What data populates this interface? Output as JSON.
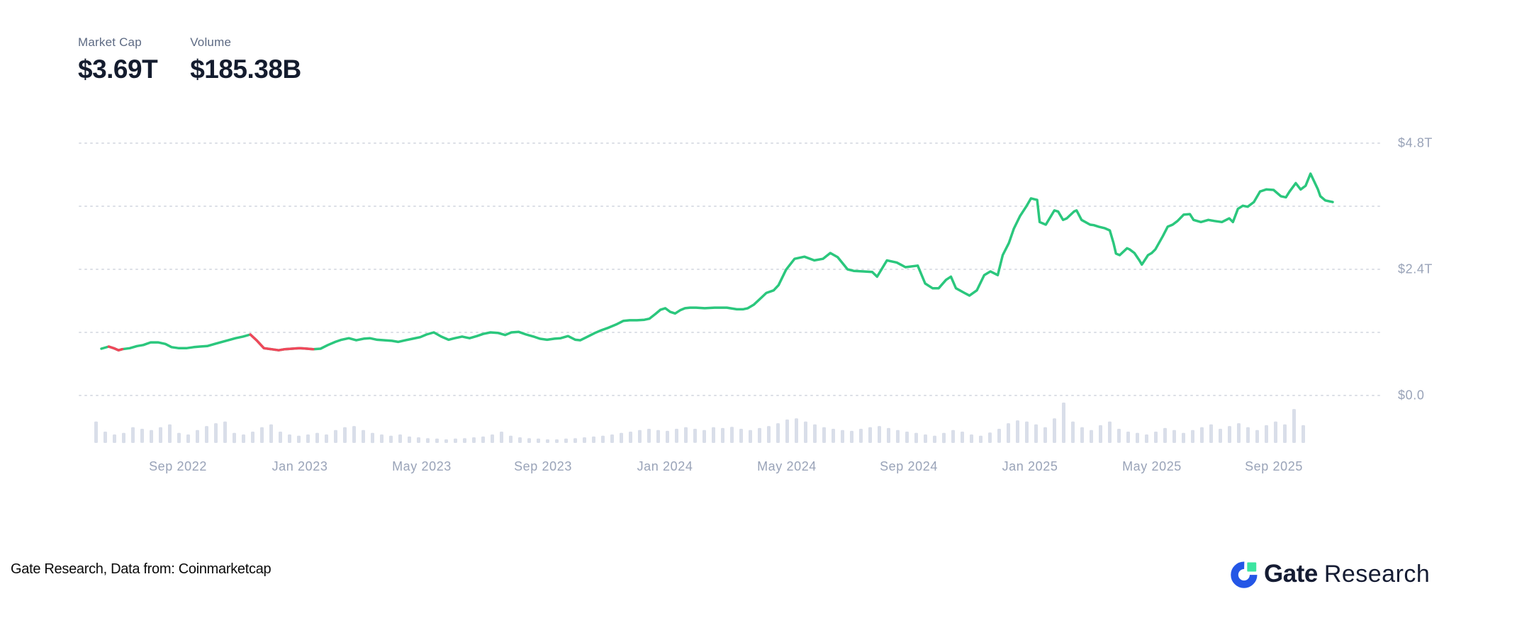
{
  "header": {
    "market_cap_label": "Market Cap",
    "market_cap_value": "$3.69T",
    "volume_label": "Volume",
    "volume_value": "$185.38B"
  },
  "footer": {
    "attribution": "Gate Research, Data from: Coinmarketcap",
    "logo_bold": "Gate",
    "logo_regular": "Research"
  },
  "colors": {
    "line_green": "#2bc77d",
    "line_red": "#f0475a",
    "volume_bar": "#d9dee9",
    "gridline": "#dcdfe6",
    "axis_label": "#99a3b8",
    "logo_blue": "#2456e6",
    "logo_green": "#3ce5a0",
    "logo_navy": "#151c33"
  },
  "chart_data": {
    "type": "line",
    "title": "Total crypto market cap (line) with trading volume (bars)",
    "x_axis": {
      "labels": [
        "Sep 2022",
        "Jan 2023",
        "May 2023",
        "Sep 2023",
        "Jan 2024",
        "May 2024",
        "Sep 2024",
        "Jan 2025",
        "May 2025",
        "Sep 2025"
      ]
    },
    "y_axis": {
      "unit": "USD trillions",
      "labels": [
        {
          "text": "$4.8T",
          "value": 4.8
        },
        {
          "text": "$2.4T",
          "value": 2.4
        },
        {
          "text": "$0.0",
          "value": 0
        }
      ],
      "gridline_values": [
        4.8,
        3.6,
        2.4,
        1.2,
        0
      ],
      "range": [
        0,
        4.8
      ],
      "grid_style": "dotted"
    },
    "series": [
      {
        "name": "Market Cap",
        "unit": "T",
        "style": "line",
        "points": [
          [
            0.0,
            0.89
          ],
          [
            0.006,
            0.93
          ],
          [
            0.01,
            0.9
          ],
          [
            0.014,
            0.86
          ],
          [
            0.017,
            0.88
          ],
          [
            0.023,
            0.9
          ],
          [
            0.029,
            0.94
          ],
          [
            0.034,
            0.96
          ],
          [
            0.04,
            1.01
          ],
          [
            0.046,
            1.01
          ],
          [
            0.052,
            0.98
          ],
          [
            0.057,
            0.92
          ],
          [
            0.063,
            0.9
          ],
          [
            0.069,
            0.9
          ],
          [
            0.075,
            0.92
          ],
          [
            0.08,
            0.93
          ],
          [
            0.086,
            0.94
          ],
          [
            0.092,
            0.98
          ],
          [
            0.098,
            1.02
          ],
          [
            0.103,
            1.05
          ],
          [
            0.109,
            1.09
          ],
          [
            0.115,
            1.12
          ],
          [
            0.121,
            1.16
          ],
          [
            0.126,
            1.05
          ],
          [
            0.132,
            0.9
          ],
          [
            0.138,
            0.88
          ],
          [
            0.144,
            0.86
          ],
          [
            0.149,
            0.88
          ],
          [
            0.155,
            0.89
          ],
          [
            0.161,
            0.9
          ],
          [
            0.167,
            0.89
          ],
          [
            0.172,
            0.88
          ],
          [
            0.178,
            0.89
          ],
          [
            0.184,
            0.96
          ],
          [
            0.19,
            1.02
          ],
          [
            0.195,
            1.06
          ],
          [
            0.201,
            1.09
          ],
          [
            0.207,
            1.05
          ],
          [
            0.213,
            1.08
          ],
          [
            0.218,
            1.09
          ],
          [
            0.224,
            1.06
          ],
          [
            0.23,
            1.05
          ],
          [
            0.236,
            1.04
          ],
          [
            0.241,
            1.02
          ],
          [
            0.247,
            1.05
          ],
          [
            0.253,
            1.08
          ],
          [
            0.259,
            1.11
          ],
          [
            0.264,
            1.16
          ],
          [
            0.27,
            1.2
          ],
          [
            0.276,
            1.12
          ],
          [
            0.282,
            1.06
          ],
          [
            0.287,
            1.09
          ],
          [
            0.293,
            1.12
          ],
          [
            0.299,
            1.09
          ],
          [
            0.305,
            1.13
          ],
          [
            0.31,
            1.17
          ],
          [
            0.316,
            1.2
          ],
          [
            0.322,
            1.19
          ],
          [
            0.328,
            1.15
          ],
          [
            0.333,
            1.2
          ],
          [
            0.339,
            1.21
          ],
          [
            0.345,
            1.16
          ],
          [
            0.351,
            1.12
          ],
          [
            0.356,
            1.08
          ],
          [
            0.362,
            1.06
          ],
          [
            0.368,
            1.08
          ],
          [
            0.373,
            1.09
          ],
          [
            0.379,
            1.13
          ],
          [
            0.385,
            1.06
          ],
          [
            0.389,
            1.05
          ],
          [
            0.395,
            1.12
          ],
          [
            0.401,
            1.19
          ],
          [
            0.406,
            1.24
          ],
          [
            0.412,
            1.29
          ],
          [
            0.418,
            1.35
          ],
          [
            0.424,
            1.42
          ],
          [
            0.429,
            1.43
          ],
          [
            0.435,
            1.43
          ],
          [
            0.441,
            1.44
          ],
          [
            0.445,
            1.46
          ],
          [
            0.45,
            1.55
          ],
          [
            0.454,
            1.63
          ],
          [
            0.458,
            1.66
          ],
          [
            0.462,
            1.59
          ],
          [
            0.466,
            1.56
          ],
          [
            0.47,
            1.62
          ],
          [
            0.474,
            1.66
          ],
          [
            0.478,
            1.67
          ],
          [
            0.483,
            1.67
          ],
          [
            0.49,
            1.66
          ],
          [
            0.498,
            1.67
          ],
          [
            0.508,
            1.67
          ],
          [
            0.516,
            1.64
          ],
          [
            0.521,
            1.64
          ],
          [
            0.525,
            1.66
          ],
          [
            0.53,
            1.73
          ],
          [
            0.536,
            1.86
          ],
          [
            0.54,
            1.95
          ],
          [
            0.546,
            2.0
          ],
          [
            0.55,
            2.1
          ],
          [
            0.556,
            2.39
          ],
          [
            0.563,
            2.6
          ],
          [
            0.571,
            2.64
          ],
          [
            0.579,
            2.57
          ],
          [
            0.586,
            2.6
          ],
          [
            0.592,
            2.71
          ],
          [
            0.598,
            2.63
          ],
          [
            0.606,
            2.4
          ],
          [
            0.611,
            2.37
          ],
          [
            0.619,
            2.36
          ],
          [
            0.626,
            2.35
          ],
          [
            0.63,
            2.26
          ],
          [
            0.638,
            2.57
          ],
          [
            0.646,
            2.53
          ],
          [
            0.653,
            2.44
          ],
          [
            0.663,
            2.47
          ],
          [
            0.669,
            2.13
          ],
          [
            0.675,
            2.04
          ],
          [
            0.68,
            2.04
          ],
          [
            0.686,
            2.2
          ],
          [
            0.69,
            2.26
          ],
          [
            0.694,
            2.04
          ],
          [
            0.701,
            1.95
          ],
          [
            0.705,
            1.9
          ],
          [
            0.711,
            2.0
          ],
          [
            0.717,
            2.29
          ],
          [
            0.722,
            2.36
          ],
          [
            0.728,
            2.29
          ],
          [
            0.732,
            2.67
          ],
          [
            0.737,
            2.9
          ],
          [
            0.741,
            3.17
          ],
          [
            0.746,
            3.41
          ],
          [
            0.751,
            3.59
          ],
          [
            0.755,
            3.75
          ],
          [
            0.76,
            3.72
          ],
          [
            0.762,
            3.3
          ],
          [
            0.767,
            3.25
          ],
          [
            0.774,
            3.52
          ],
          [
            0.777,
            3.5
          ],
          [
            0.781,
            3.34
          ],
          [
            0.784,
            3.37
          ],
          [
            0.79,
            3.5
          ],
          [
            0.792,
            3.52
          ],
          [
            0.796,
            3.34
          ],
          [
            0.803,
            3.25
          ],
          [
            0.806,
            3.24
          ],
          [
            0.81,
            3.21
          ],
          [
            0.815,
            3.18
          ],
          [
            0.819,
            3.14
          ],
          [
            0.822,
            2.9
          ],
          [
            0.824,
            2.7
          ],
          [
            0.827,
            2.67
          ],
          [
            0.833,
            2.8
          ],
          [
            0.835,
            2.78
          ],
          [
            0.839,
            2.71
          ],
          [
            0.843,
            2.57
          ],
          [
            0.845,
            2.49
          ],
          [
            0.85,
            2.67
          ],
          [
            0.853,
            2.71
          ],
          [
            0.856,
            2.78
          ],
          [
            0.862,
            3.03
          ],
          [
            0.866,
            3.21
          ],
          [
            0.87,
            3.25
          ],
          [
            0.874,
            3.32
          ],
          [
            0.879,
            3.44
          ],
          [
            0.884,
            3.45
          ],
          [
            0.887,
            3.34
          ],
          [
            0.893,
            3.3
          ],
          [
            0.899,
            3.34
          ],
          [
            0.904,
            3.32
          ],
          [
            0.91,
            3.3
          ],
          [
            0.916,
            3.37
          ],
          [
            0.919,
            3.3
          ],
          [
            0.923,
            3.55
          ],
          [
            0.927,
            3.61
          ],
          [
            0.931,
            3.59
          ],
          [
            0.936,
            3.68
          ],
          [
            0.941,
            3.88
          ],
          [
            0.946,
            3.92
          ],
          [
            0.952,
            3.91
          ],
          [
            0.958,
            3.79
          ],
          [
            0.962,
            3.77
          ],
          [
            0.965,
            3.88
          ],
          [
            0.97,
            4.04
          ],
          [
            0.974,
            3.92
          ],
          [
            0.978,
            3.99
          ],
          [
            0.982,
            4.22
          ],
          [
            0.988,
            3.92
          ],
          [
            0.99,
            3.79
          ],
          [
            0.994,
            3.71
          ],
          [
            1.0,
            3.68
          ]
        ],
        "red_segments": [
          [
            0.003,
            0.018
          ],
          [
            0.12,
            0.176
          ]
        ]
      }
    ],
    "volume_series": {
      "name": "Volume",
      "unit": "relative, 100 = tallest bar",
      "values": [
        53,
        28,
        21,
        25,
        39,
        35,
        32,
        39,
        46,
        25,
        21,
        32,
        42,
        49,
        53,
        25,
        21,
        28,
        39,
        46,
        28,
        21,
        18,
        21,
        25,
        21,
        32,
        39,
        42,
        32,
        25,
        21,
        18,
        21,
        16,
        14,
        12,
        11,
        9,
        11,
        12,
        14,
        16,
        21,
        28,
        18,
        14,
        12,
        11,
        9,
        9,
        11,
        12,
        14,
        16,
        18,
        21,
        25,
        28,
        32,
        35,
        32,
        30,
        35,
        39,
        35,
        32,
        39,
        37,
        40,
        35,
        32,
        37,
        42,
        49,
        58,
        61,
        53,
        46,
        39,
        35,
        32,
        30,
        35,
        39,
        42,
        37,
        32,
        28,
        25,
        21,
        18,
        25,
        32,
        28,
        21,
        18,
        26,
        35,
        49,
        56,
        53,
        46,
        39,
        61,
        100,
        53,
        39,
        32,
        44,
        53,
        35,
        28,
        25,
        21,
        28,
        37,
        32,
        25,
        32,
        39,
        46,
        35,
        42,
        49,
        39,
        32,
        44,
        53,
        46,
        84,
        44
      ]
    },
    "legend": "none"
  }
}
